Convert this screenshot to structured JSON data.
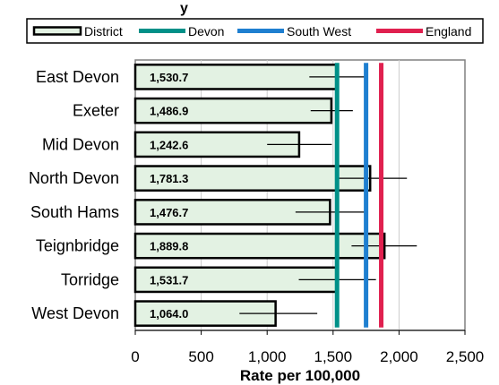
{
  "title_fragment": "y",
  "colors": {
    "bar_fill": "#e3f2e3",
    "bar_stroke": "#000000",
    "devon": "#009088",
    "south_west": "#1e7fd0",
    "england": "#e0204f",
    "grid": "#cccccc",
    "plot_border": "#808080"
  },
  "chart_data": {
    "type": "bar",
    "orientation": "horizontal",
    "title": "",
    "xlabel": "Rate per 100,000",
    "ylabel": "",
    "xlim": [
      0,
      2500
    ],
    "xticks": [
      0,
      500,
      1000,
      1500,
      2000,
      2500
    ],
    "xtick_labels": [
      "0",
      "500",
      "1,000",
      "1,500",
      "2,000",
      "2,500"
    ],
    "grid": "vertical",
    "legend_position": "top",
    "categories": [
      "East Devon",
      "Exeter",
      "Mid Devon",
      "North Devon",
      "South Hams",
      "Teignbridge",
      "Torridge",
      "West Devon"
    ],
    "series": [
      {
        "name": "District",
        "values": [
          1530.7,
          1486.9,
          1242.6,
          1781.3,
          1476.7,
          1889.8,
          1531.7,
          1064.0
        ],
        "value_labels": [
          "1,530.7",
          "1,486.9",
          "1,242.6",
          "1,781.3",
          "1,476.7",
          "1,889.8",
          "1,531.7",
          "1,064.0"
        ],
        "error_low": [
          1320,
          1330,
          1000,
          1520,
          1215,
          1640,
          1240,
          790
        ],
        "error_high": [
          1750,
          1650,
          1490,
          2060,
          1740,
          2135,
          1825,
          1380
        ]
      }
    ],
    "reference_lines": [
      {
        "name": "Devon",
        "value": 1530,
        "color": "#009088"
      },
      {
        "name": "South West",
        "value": 1750,
        "color": "#1e7fd0"
      },
      {
        "name": "England",
        "value": 1865,
        "color": "#e0204f"
      }
    ]
  }
}
